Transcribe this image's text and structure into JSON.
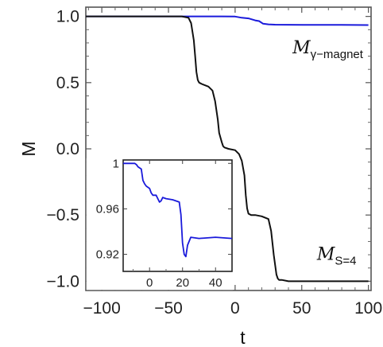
{
  "chart_data": [
    {
      "id": "main",
      "type": "line",
      "xlabel": "t",
      "ylabel": "M",
      "xlim": [
        -112,
        102
      ],
      "ylim": [
        -1.07,
        1.07
      ],
      "xticks": [
        -100,
        -50,
        0,
        50,
        100
      ],
      "yticks": [
        -1.0,
        -0.5,
        0.0,
        0.5,
        1.0
      ],
      "xtick_labels": [
        "−100",
        "−50",
        "0",
        "50",
        "100"
      ],
      "ytick_labels": [
        "−1.0",
        "−0.5",
        "0.0",
        "0.5",
        "1.0"
      ],
      "grid": false,
      "series": [
        {
          "name": "M_{γ-magnet}",
          "color": "#1a1adb",
          "x": [
            -112,
            -10,
            0,
            5,
            10,
            15,
            18,
            21,
            25,
            30,
            40,
            60,
            80,
            100
          ],
          "y": [
            1.0,
            1.0,
            0.999,
            0.99,
            0.985,
            0.97,
            0.965,
            0.945,
            0.94,
            0.938,
            0.937,
            0.936,
            0.936,
            0.935
          ]
        },
        {
          "name": "M_{S=4}",
          "color": "#111111",
          "x": [
            -112,
            -40,
            -35,
            -33,
            -31,
            -30,
            -29,
            -28,
            -27,
            -25,
            -20,
            -17,
            -15,
            -13,
            -12,
            -10,
            -9,
            -8,
            -5,
            0,
            3,
            5,
            7,
            8,
            9,
            10,
            12,
            15,
            20,
            25,
            27,
            29,
            31,
            32,
            33,
            35,
            40,
            60,
            80,
            100
          ],
          "y": [
            1.0,
            1.0,
            0.99,
            0.95,
            0.82,
            0.7,
            0.58,
            0.52,
            0.5,
            0.49,
            0.47,
            0.44,
            0.36,
            0.22,
            0.12,
            0.05,
            0.02,
            0.01,
            0.0,
            -0.01,
            -0.04,
            -0.09,
            -0.2,
            -0.35,
            -0.45,
            -0.49,
            -0.5,
            -0.5,
            -0.51,
            -0.53,
            -0.62,
            -0.8,
            -0.95,
            -0.98,
            -0.99,
            -0.99,
            -1.0,
            -1.0,
            -1.0,
            -1.0
          ]
        }
      ],
      "annotations": [
        {
          "main": "M",
          "sub": "γ−magnet",
          "x": 96,
          "y": 0.72
        },
        {
          "main": "M",
          "sub": "S=4",
          "x": 91,
          "y": -0.84
        }
      ]
    },
    {
      "id": "inset",
      "type": "line",
      "xlim": [
        -16,
        50
      ],
      "ylim": [
        0.905,
        1.003
      ],
      "xticks": [
        0,
        20,
        40
      ],
      "yticks": [
        0.92,
        0.96,
        1.0
      ],
      "xtick_labels": [
        "0",
        "20",
        "40"
      ],
      "ytick_labels": [
        "0.92",
        "0.96",
        "1"
      ],
      "grid": false,
      "series": [
        {
          "name": "M_{γ-magnet}",
          "color": "#1a1adb",
          "x": [
            -16,
            -9,
            -8,
            -7,
            -5,
            -4,
            -3,
            -2,
            0,
            1,
            2,
            4,
            5,
            6,
            7,
            8,
            10,
            14,
            18,
            19,
            20,
            21,
            22,
            23,
            25,
            30,
            40,
            50
          ],
          "y": [
            1.0,
            1.0,
            0.999,
            0.997,
            0.995,
            0.985,
            0.982,
            0.98,
            0.978,
            0.974,
            0.972,
            0.972,
            0.969,
            0.966,
            0.967,
            0.97,
            0.969,
            0.968,
            0.966,
            0.955,
            0.93,
            0.92,
            0.918,
            0.928,
            0.935,
            0.934,
            0.935,
            0.934
          ]
        }
      ]
    }
  ]
}
